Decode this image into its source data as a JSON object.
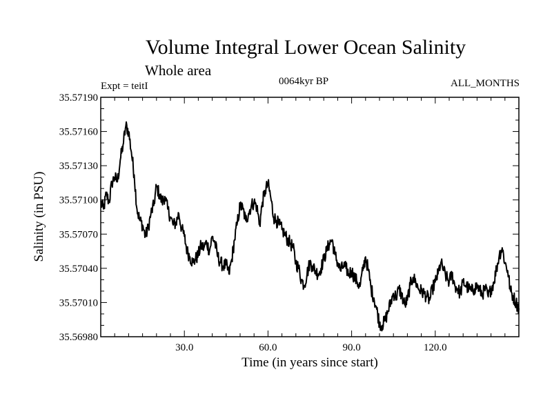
{
  "header": {
    "title": "Volume Integral Lower Ocean Salinity",
    "subtitle": "Whole area",
    "experiment": "Expt = teitI",
    "period": "0064kyr BP",
    "months": "ALL_MONTHS"
  },
  "chart_data": {
    "type": "line",
    "title": "Volume Integral Lower Ocean Salinity",
    "xlabel": "Time (in years since start)",
    "ylabel": "Salinity (in PSU)",
    "xlim": [
      0,
      150
    ],
    "ylim": [
      35.5698,
      35.5719
    ],
    "x_ticks": [
      30,
      60,
      90,
      120
    ],
    "x_tick_labels": [
      "30.0",
      "60.0",
      "90.0",
      "120.0"
    ],
    "y_ticks": [
      35.5698,
      35.5701,
      35.5704,
      35.5707,
      35.571,
      35.5713,
      35.5716,
      35.5719
    ],
    "y_tick_labels": [
      "35.56980",
      "35.57010",
      "35.57040",
      "35.57070",
      "35.57100",
      "35.57130",
      "35.57160",
      "35.57190"
    ],
    "series": [
      {
        "name": "Salinity",
        "color": "#000000",
        "x": [
          0,
          1,
          2,
          3,
          4,
          5,
          6,
          7,
          8,
          9,
          10,
          11,
          12,
          13,
          14,
          15,
          16,
          17,
          18,
          19,
          20,
          21,
          22,
          23,
          24,
          25,
          26,
          27,
          28,
          29,
          30,
          31,
          32,
          33,
          34,
          35,
          36,
          37,
          38,
          39,
          40,
          41,
          42,
          43,
          44,
          45,
          46,
          47,
          48,
          49,
          50,
          51,
          52,
          53,
          54,
          55,
          56,
          57,
          58,
          59,
          60,
          61,
          62,
          63,
          64,
          65,
          66,
          67,
          68,
          69,
          70,
          71,
          72,
          73,
          74,
          75,
          76,
          77,
          78,
          79,
          80,
          81,
          82,
          83,
          84,
          85,
          86,
          87,
          88,
          89,
          90,
          91,
          92,
          93,
          94,
          95,
          96,
          97,
          98,
          99,
          100,
          101,
          102,
          103,
          104,
          105,
          106,
          107,
          108,
          109,
          110,
          111,
          112,
          113,
          114,
          115,
          116,
          117,
          118,
          119,
          120,
          121,
          122,
          123,
          124,
          125,
          126,
          127,
          128,
          129,
          130,
          131,
          132,
          133,
          134,
          135,
          136,
          137,
          138,
          139,
          140,
          141,
          142,
          143,
          144,
          145,
          146,
          147,
          148,
          149,
          150
        ],
        "values": [
          35.57098,
          35.57092,
          35.57105,
          35.57098,
          35.57115,
          35.5712,
          35.57116,
          35.57135,
          35.57148,
          35.57165,
          35.5716,
          35.57142,
          35.57122,
          35.57092,
          35.57082,
          35.57078,
          35.57068,
          35.57075,
          35.57088,
          35.57095,
          35.57112,
          35.57105,
          35.57098,
          35.57103,
          35.57092,
          35.57085,
          35.57078,
          35.5708,
          35.57088,
          35.57075,
          35.57068,
          35.57055,
          35.5705,
          35.57045,
          35.57048,
          35.57052,
          35.5706,
          35.57058,
          35.57063,
          35.57055,
          35.57068,
          35.57062,
          35.5705,
          35.57045,
          35.57042,
          35.57043,
          35.57035,
          35.57048,
          35.57065,
          35.5708,
          35.57095,
          35.57092,
          35.57082,
          35.57088,
          35.57095,
          35.57098,
          35.57094,
          35.57078,
          35.57098,
          35.57108,
          35.57114,
          35.57102,
          35.57085,
          35.57082,
          35.57078,
          35.57074,
          35.5707,
          35.57065,
          35.57062,
          35.57058,
          35.57045,
          35.5704,
          35.5703,
          35.57025,
          35.57035,
          35.57045,
          35.57042,
          35.57038,
          35.57035,
          35.5704,
          35.57048,
          35.57055,
          35.57062,
          35.57065,
          35.57052,
          35.57045,
          35.57038,
          35.57042,
          35.5704,
          35.57035,
          35.57038,
          35.57032,
          35.57028,
          35.57024,
          35.57038,
          35.5705,
          35.57038,
          35.57022,
          35.57014,
          35.57004,
          35.56992,
          35.5699,
          35.56994,
          35.57002,
          35.5701,
          35.57018,
          35.57015,
          35.57022,
          35.57016,
          35.57008,
          35.57012,
          35.57025,
          35.57032,
          35.57028,
          35.57022,
          35.5702,
          35.57018,
          35.57015,
          35.57012,
          35.57022,
          35.57028,
          35.57035,
          35.57045,
          35.57038,
          35.57032,
          35.57028,
          35.57035,
          35.57025,
          35.57022,
          35.57018,
          35.57028,
          35.57025,
          35.57022,
          35.5702,
          35.57022,
          35.57025,
          35.5702,
          35.57018,
          35.57022,
          35.57015,
          35.57022,
          35.57028,
          35.5704,
          35.57052,
          35.57058,
          35.57045,
          35.57038,
          35.5702,
          35.57015,
          35.5701,
          35.57005
        ]
      }
    ]
  }
}
